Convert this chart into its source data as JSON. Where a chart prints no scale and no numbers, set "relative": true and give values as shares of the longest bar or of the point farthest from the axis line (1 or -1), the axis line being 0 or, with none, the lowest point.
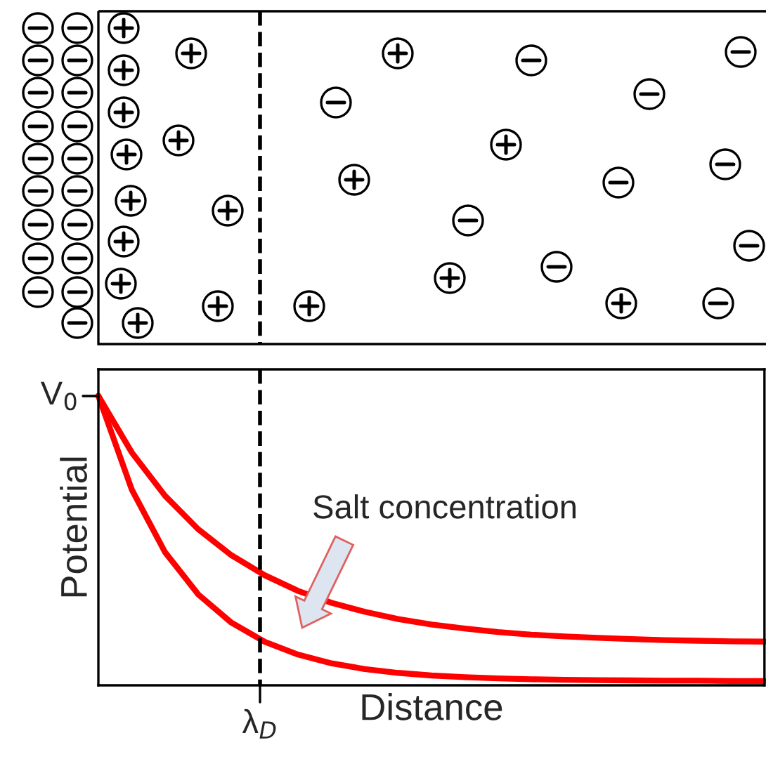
{
  "chart_data": {
    "type": "line",
    "relative": true,
    "xlabel": "Distance",
    "ylabel": "Potential",
    "categories": [
      null,
      null,
      null,
      null,
      null,
      null,
      null,
      null,
      null,
      null,
      null,
      null,
      null,
      null,
      null,
      null,
      null,
      null,
      null,
      null,
      null
    ],
    "series": [
      {
        "color": "#ff0000",
        "values": [
          1,
          0.805,
          0.655,
          0.539,
          0.449,
          0.38,
          0.326,
          0.285,
          0.254,
          0.229,
          0.21,
          0.196,
          0.184,
          0.175,
          0.169,
          0.164,
          0.16,
          0.156,
          0.154,
          0.152,
          0.151
        ]
      },
      {
        "color": "#ff0000",
        "values": [
          1,
          0.677,
          0.46,
          0.314,
          0.216,
          0.15,
          0.106,
          0.076,
          0.056,
          0.043,
          0.034,
          0.028,
          0.024,
          0.021,
          0.019,
          0.018,
          0.017,
          0.016,
          0.016,
          0.015,
          0.015
        ]
      }
    ],
    "annotations": [
      "V$_{0}$",
      "λ$_{D}$",
      "Salt concentration"
    ],
    "legend": false,
    "marker": "none",
    "line_style": "solid"
  }
}
